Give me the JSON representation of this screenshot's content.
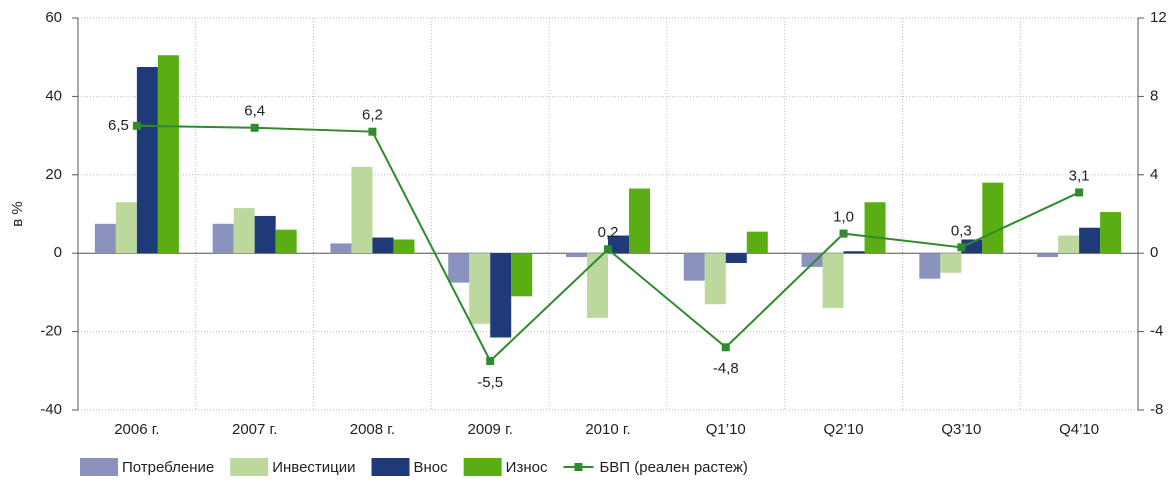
{
  "chart_data": {
    "type": "bar",
    "ylabel": "в %",
    "categories": [
      "2006 г.",
      "2007 г.",
      "2008 г.",
      "2009 г.",
      "2010 г.",
      "Q1’10",
      "Q2’10",
      "Q3’10",
      "Q4’10"
    ],
    "series": [
      {
        "name": "Потребление",
        "color": "#8a92bd",
        "values": [
          7.5,
          7.5,
          2.5,
          -7.5,
          -1,
          -7,
          -3.5,
          -6.5,
          -1
        ]
      },
      {
        "name": "Инвестиции",
        "color": "#bcd89c",
        "values": [
          13,
          11.5,
          22,
          -18,
          -16.5,
          -13,
          -14,
          -5,
          4.5
        ]
      },
      {
        "name": "Внос",
        "color": "#1f3a78",
        "values": [
          47.5,
          9.5,
          4,
          -21.5,
          4.5,
          -2.5,
          0.5,
          3.5,
          6.5
        ]
      },
      {
        "name": "Износ",
        "color": "#5aae14",
        "values": [
          50.5,
          6,
          3.5,
          -11,
          16.5,
          5.5,
          13,
          18,
          10.5
        ]
      },
      {
        "name": "БВП (реален растеж)",
        "color": "#2e8b2e",
        "type": "line",
        "axis": "y2",
        "values": [
          6.5,
          6.4,
          6.2,
          -5.5,
          0.2,
          -4.8,
          1.0,
          0.3,
          3.1
        ],
        "value_labels": [
          "6,5",
          "6,4",
          "6,2",
          "-5,5",
          "0,2",
          "-4,8",
          "1,0",
          "0,3",
          "3,1"
        ]
      }
    ],
    "ylim": [
      -40,
      60
    ],
    "yticks": [
      -40,
      -20,
      0,
      20,
      40,
      60
    ],
    "y2lim": [
      -8,
      12
    ],
    "y2ticks": [
      -8,
      -4,
      0,
      4,
      8,
      12
    ],
    "grid": true,
    "legend": "bottom"
  }
}
